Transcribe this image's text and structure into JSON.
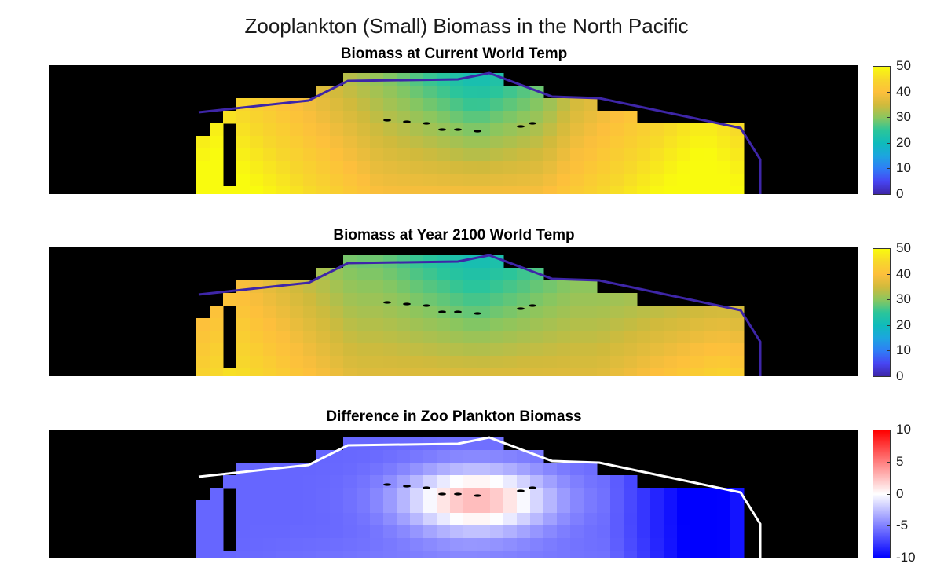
{
  "figure": {
    "title": "Zooplankton (Small) Biomass in the North Pacific"
  },
  "chart_data": [
    {
      "type": "heatmap",
      "title": "Biomass at Current World Temp",
      "colormap": "parula",
      "clim": [
        0,
        50
      ],
      "colorbar_ticks": [
        "0",
        "10",
        "20",
        "30",
        "40",
        "50"
      ],
      "xlabel": "",
      "ylabel": "",
      "grid": [
        [
          null,
          null,
          null,
          null,
          null,
          null,
          null,
          null,
          null,
          null,
          null,
          null,
          null,
          null,
          null,
          null,
          null,
          null,
          null,
          null,
          null,
          null,
          null,
          null,
          null,
          null,
          null,
          null,
          null,
          null,
          null,
          null,
          null,
          null,
          null,
          null,
          null,
          null,
          null,
          null,
          null,
          null,
          null,
          null,
          null,
          null,
          null,
          null,
          null,
          null,
          null,
          null,
          null,
          null,
          null,
          null,
          null,
          null,
          null,
          null
        ],
        [
          null,
          null,
          null,
          null,
          null,
          null,
          null,
          null,
          null,
          null,
          null,
          null,
          null,
          null,
          null,
          null,
          null,
          null,
          null,
          null,
          null,
          null,
          null,
          null,
          null,
          null,
          null,
          null,
          null,
          null,
          null,
          null,
          null,
          null,
          null,
          null,
          null,
          null,
          null,
          null,
          null,
          null,
          null,
          null,
          null,
          null,
          null,
          null,
          null,
          null,
          null,
          null,
          null,
          null,
          null,
          null,
          null,
          null,
          null,
          null
        ],
        [
          null,
          null,
          null,
          null,
          null,
          null,
          null,
          null,
          null,
          null,
          null,
          null,
          null,
          null,
          null,
          null,
          null,
          null,
          null,
          null,
          null,
          null,
          null,
          null,
          null,
          null,
          null,
          null,
          null,
          null,
          null,
          null,
          null,
          null,
          null,
          null,
          null,
          null,
          null,
          null,
          null,
          null,
          null,
          null,
          null,
          null,
          null,
          null,
          null,
          null,
          null,
          null,
          null,
          null,
          null,
          null,
          null,
          null,
          null,
          null
        ],
        [
          null,
          null,
          null,
          null,
          null,
          null,
          null,
          null,
          null,
          null,
          null,
          null,
          null,
          null,
          null,
          null,
          null,
          null,
          null,
          null,
          null,
          null,
          null,
          null,
          null,
          null,
          null,
          null,
          null,
          null,
          null,
          null,
          null,
          null,
          null,
          null,
          null,
          null,
          null,
          null,
          null,
          null,
          null,
          null,
          null,
          null,
          null,
          null,
          null,
          null,
          null,
          null,
          null,
          null,
          null,
          null,
          null,
          null,
          null,
          null
        ],
        [
          null,
          null,
          null,
          null,
          null,
          null,
          null,
          null,
          null,
          null,
          null,
          null,
          null,
          null,
          null,
          null,
          null,
          null,
          null,
          null,
          null,
          null,
          null,
          null,
          null,
          null,
          null,
          null,
          null,
          null,
          null,
          null,
          null,
          null,
          null,
          null,
          null,
          null,
          null,
          null,
          null,
          null,
          null,
          null,
          null,
          null,
          null,
          null,
          null,
          null,
          null,
          null,
          null,
          null,
          null,
          null,
          null,
          null,
          null,
          null
        ],
        [
          null,
          null,
          null,
          null,
          null,
          null,
          null,
          null,
          null,
          null,
          null,
          null,
          null,
          null,
          null,
          null,
          null,
          null,
          null,
          null,
          null,
          null,
          null,
          null,
          null,
          null,
          null,
          null,
          null,
          null,
          null,
          null,
          null,
          null,
          null,
          null,
          null,
          null,
          null,
          null,
          null,
          null,
          null,
          null,
          null,
          null,
          null,
          null,
          null,
          null,
          null,
          null,
          null,
          null,
          null,
          null,
          null,
          null,
          null,
          null
        ],
        [
          null,
          null,
          null,
          null,
          null,
          null,
          null,
          null,
          null,
          null,
          null,
          null,
          null,
          null,
          null,
          null,
          null,
          null,
          null,
          null,
          null,
          null,
          null,
          null,
          null,
          null,
          null,
          null,
          null,
          null,
          null,
          null,
          null,
          null,
          null,
          null,
          null,
          null,
          null,
          null,
          null,
          null,
          null,
          null,
          null,
          null,
          null,
          null,
          null,
          null,
          null,
          null,
          null,
          null,
          null,
          null,
          null,
          null,
          null,
          null
        ],
        [
          null,
          null,
          null,
          null,
          null,
          null,
          null,
          null,
          null,
          null,
          null,
          null,
          null,
          null,
          null,
          null,
          null,
          null,
          null,
          null,
          null,
          null,
          null,
          null,
          null,
          null,
          null,
          null,
          null,
          null,
          null,
          null,
          null,
          null,
          null,
          null,
          null,
          null,
          null,
          null,
          null,
          null,
          null,
          null,
          null,
          null,
          null,
          null,
          null,
          null,
          null,
          null,
          null,
          null,
          null,
          null,
          null,
          null,
          null,
          null
        ],
        [
          null,
          null,
          null,
          null,
          null,
          null,
          null,
          null,
          null,
          null,
          null,
          null,
          null,
          null,
          null,
          null,
          null,
          null,
          null,
          null,
          null,
          null,
          null,
          null,
          null,
          null,
          null,
          null,
          null,
          null,
          null,
          null,
          null,
          null,
          null,
          null,
          null,
          null,
          null,
          null,
          null,
          null,
          null,
          null,
          null,
          null,
          null,
          null,
          null,
          null,
          null,
          null,
          null,
          null,
          null,
          null,
          null,
          null,
          null,
          null
        ],
        [
          null,
          null,
          null,
          null,
          null,
          null,
          null,
          null,
          null,
          null,
          null,
          null,
          null,
          null,
          null,
          null,
          null,
          null,
          null,
          null,
          null,
          null,
          null,
          null,
          null,
          null,
          null,
          null,
          null,
          null,
          null,
          null,
          null,
          null,
          null,
          null,
          null,
          null,
          null,
          null,
          null,
          null,
          null,
          null,
          null,
          null,
          null,
          null,
          null,
          null,
          null,
          null,
          null,
          null,
          null,
          null,
          null,
          null,
          null,
          null
        ],
        [
          null,
          null,
          null,
          null,
          null,
          null,
          null,
          null,
          null,
          null,
          null,
          null,
          null,
          null,
          null,
          null,
          null,
          null,
          null,
          null,
          null,
          null,
          null,
          null,
          null,
          null,
          null,
          null,
          null,
          null,
          null,
          null,
          null,
          null,
          null,
          null,
          null,
          null,
          null,
          null,
          null,
          null,
          null,
          null,
          null,
          null,
          null,
          null,
          null,
          null,
          null,
          null,
          null,
          null,
          null,
          null,
          null,
          null,
          null,
          null
        ],
        [
          null,
          null,
          null,
          null,
          null,
          null,
          null,
          null,
          null,
          null,
          null,
          null,
          null,
          null,
          null,
          null,
          null,
          null,
          null,
          null,
          null,
          null,
          null,
          null,
          null,
          null,
          null,
          null,
          null,
          null,
          null,
          null,
          null,
          null,
          null,
          null,
          null,
          null,
          null,
          null,
          null,
          null,
          null,
          null,
          null,
          null,
          null,
          null,
          null,
          null,
          null,
          null,
          null,
          null,
          null,
          null,
          null,
          null,
          null,
          null
        ]
      ]
    },
    {
      "type": "heatmap",
      "title": "Biomass at Year 2100 World Temp",
      "colormap": "parula",
      "clim": [
        0,
        50
      ],
      "colorbar_ticks": [
        "0",
        "10",
        "20",
        "30",
        "40",
        "50"
      ]
    },
    {
      "type": "heatmap",
      "title": "Difference in Zoo Plankton Biomass",
      "colormap": "blue-white-red",
      "clim": [
        -10,
        10
      ],
      "colorbar_ticks": [
        "-10",
        "-5",
        "0",
        "5",
        "10"
      ]
    }
  ]
}
